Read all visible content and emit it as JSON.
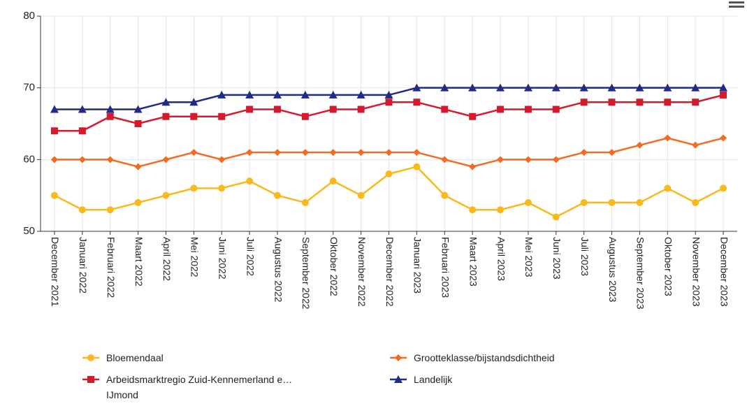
{
  "chart_data": {
    "type": "line",
    "categories": [
      "December 2021",
      "Januari 2022",
      "Februari 2022",
      "Maart 2022",
      "April 2022",
      "Mei 2022",
      "Juni 2022",
      "Juli 2022",
      "Augustus 2022",
      "September 2022",
      "Oktober 2022",
      "November 2022",
      "December 2022",
      "Januari 2023",
      "Februari 2023",
      "Maart 2023",
      "April 2023",
      "Mei 2023",
      "Juni 2023",
      "Juli 2023",
      "Augustus 2023",
      "September 2023",
      "Oktober 2023",
      "November 2023",
      "December 2023"
    ],
    "series": [
      {
        "name": "Bloemendaal",
        "color": "#f9b91c",
        "marker": "circle",
        "values": [
          55,
          53,
          53,
          54,
          55,
          56,
          56,
          57,
          55,
          54,
          57,
          55,
          58,
          59,
          55,
          53,
          53,
          54,
          52,
          54,
          54,
          54,
          56,
          54,
          56
        ]
      },
      {
        "name": "Grootteklasse/bijstandsdichtheid",
        "color": "#f26a24",
        "marker": "diamond",
        "values": [
          60,
          60,
          60,
          59,
          60,
          61,
          60,
          61,
          61,
          61,
          61,
          61,
          61,
          61,
          60,
          59,
          60,
          60,
          60,
          61,
          61,
          62,
          63,
          62,
          63
        ]
      },
      {
        "name": "Arbeidsmarktregio Zuid-Kennemerland e…\nIJmond",
        "color": "#d41a2c",
        "marker": "square",
        "values": [
          64,
          64,
          66,
          65,
          66,
          66,
          66,
          67,
          67,
          66,
          67,
          67,
          68,
          68,
          67,
          66,
          67,
          67,
          67,
          68,
          68,
          68,
          68,
          68,
          69
        ]
      },
      {
        "name": "Landelijk",
        "color": "#1f2b86",
        "marker": "triangle",
        "values": [
          67,
          67,
          67,
          67,
          68,
          68,
          69,
          69,
          69,
          69,
          69,
          69,
          69,
          70,
          70,
          70,
          70,
          70,
          70,
          70,
          70,
          70,
          70,
          70,
          70
        ]
      }
    ],
    "ylim": [
      50,
      80
    ],
    "yticks": [
      50,
      60,
      70,
      80
    ],
    "grid": true
  }
}
